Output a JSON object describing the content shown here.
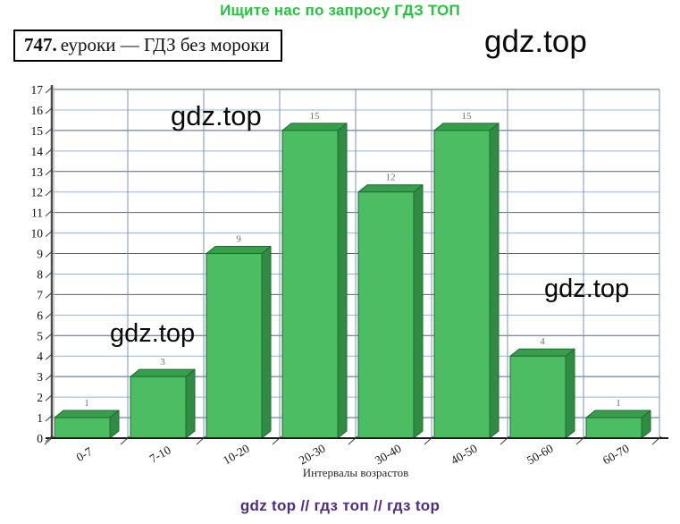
{
  "page": {
    "promo_top": "Ищите нас по запросу ГДЗ ТОП",
    "promo_color": "#24c43c",
    "watermark": "gdz.top",
    "footer": "gdz top  //  гдз топ  //  гдз top",
    "footer_color": "#4e2b85"
  },
  "header": {
    "number": "747.",
    "title": "еуроки  —  ГДЗ без мороки"
  },
  "chart_data": {
    "type": "bar",
    "categories": [
      "0-7",
      "7-10",
      "10-20",
      "20-30",
      "30-40",
      "40-50",
      "50-60",
      "60-70"
    ],
    "values": [
      1,
      3,
      9,
      15,
      12,
      15,
      4,
      1
    ],
    "title": "",
    "xlabel": "Интервалы возрастов",
    "ylabel": "",
    "ylim": [
      0,
      17
    ],
    "y_ticks": [
      0,
      1,
      2,
      3,
      4,
      5,
      6,
      7,
      8,
      9,
      10,
      11,
      12,
      13,
      14,
      15,
      16,
      17
    ],
    "grid": true,
    "legend": "none",
    "style_3d": true,
    "bar_color": "#4cbd62",
    "bar_top_color": "#379f4c",
    "bar_side_color": "#2f8c42",
    "bar_outline_color": "#1d6b31",
    "grid_color_dark": "#44659b",
    "grid_color_light": "#9db3d4",
    "grid_vertical_color": "#7b94be",
    "value_label_color": "#6f6f6f"
  }
}
